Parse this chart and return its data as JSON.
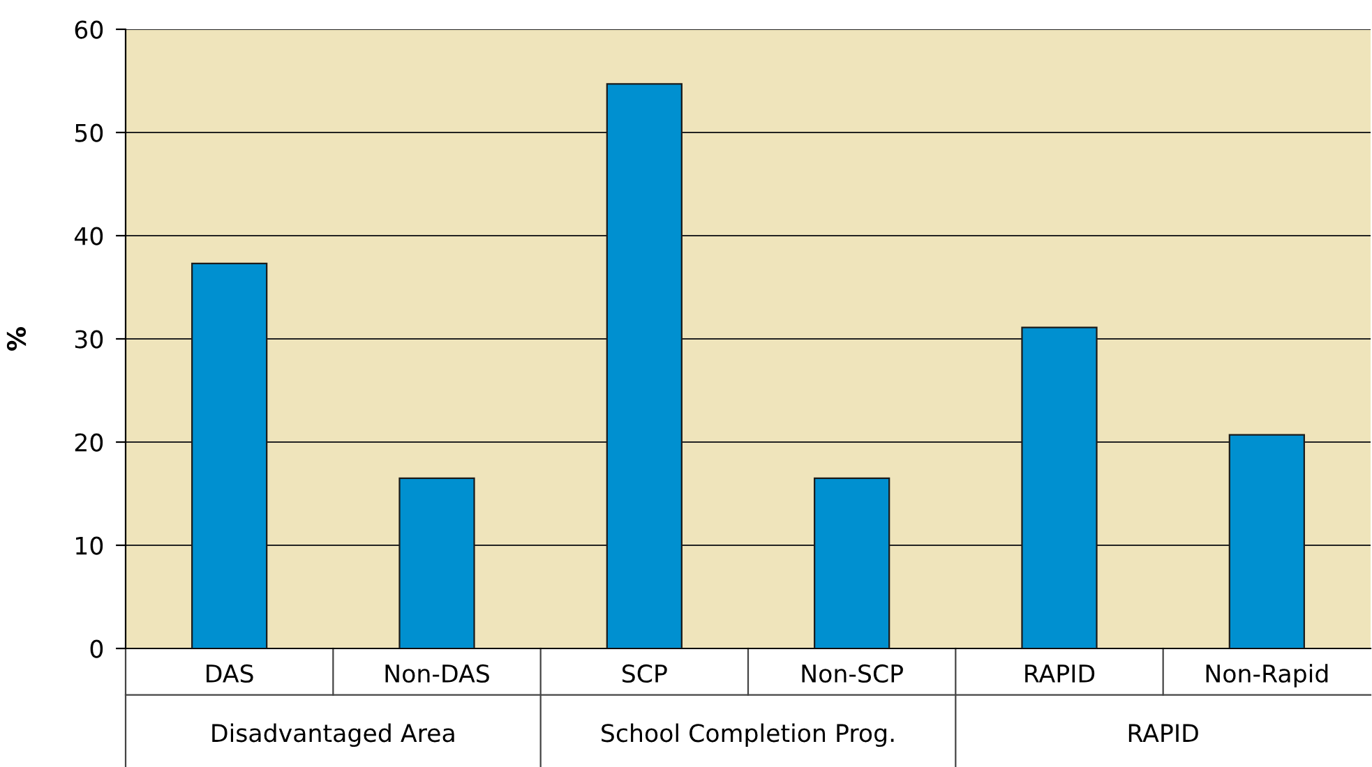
{
  "chart_data": {
    "type": "bar",
    "ylabel": "%",
    "categories": [
      "DAS",
      "Non-DAS",
      "SCP",
      "Non-SCP",
      "RAPID",
      "Non-Rapid"
    ],
    "values": [
      37.3,
      16.5,
      54.7,
      16.5,
      31.1,
      20.7
    ],
    "color": "#0090d0",
    "ylim": [
      0,
      60
    ],
    "yticks": [
      0,
      10,
      20,
      30,
      40,
      50,
      60
    ],
    "grid": "y",
    "annotations": [
      "Disadvantaged Area",
      "School Completion Prog.",
      "RAPID"
    ]
  }
}
